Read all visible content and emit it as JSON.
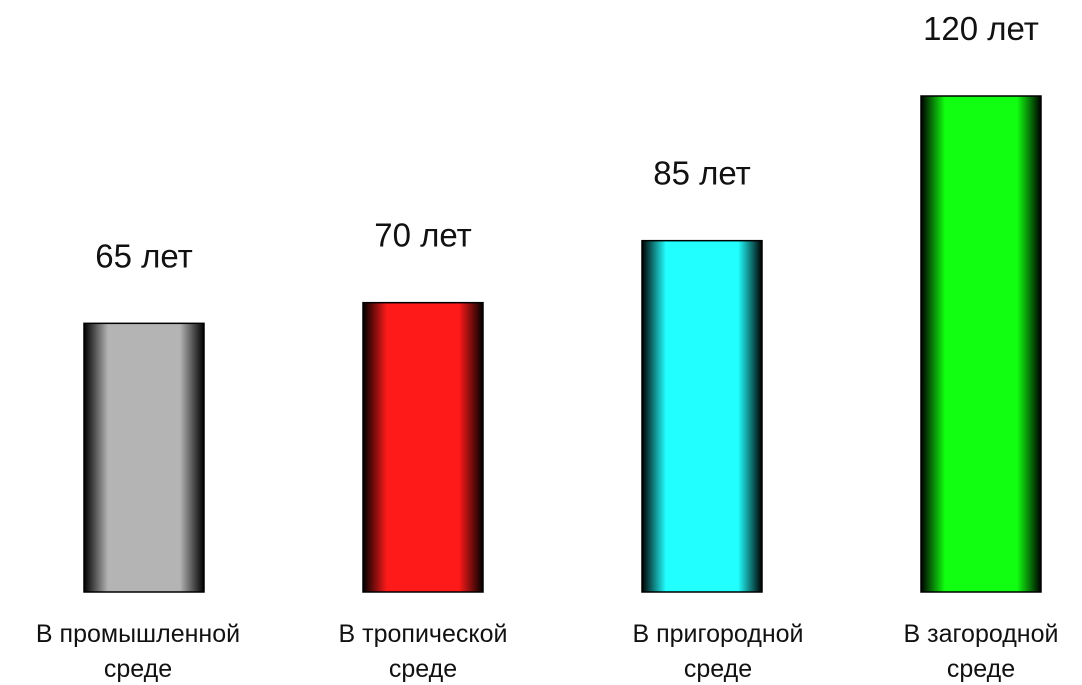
{
  "chart_data": {
    "type": "bar",
    "title": "",
    "xlabel": "",
    "ylabel": "",
    "ylim": [
      0,
      120
    ],
    "grid": false,
    "legend": "none",
    "categories": [
      [
        "В промышленной",
        "среде"
      ],
      [
        "В тропической",
        "среде"
      ],
      [
        "В пригородной",
        "среде"
      ],
      [
        "В загородной",
        "среде"
      ]
    ],
    "values": [
      65,
      70,
      85,
      120
    ],
    "value_labels": [
      "65 лет",
      "70 лет",
      "85 лет",
      "120 лет"
    ],
    "bar_colors": [
      "#b4b4b4",
      "#ff1a1a",
      "#22ffff",
      "#11ff11"
    ]
  }
}
